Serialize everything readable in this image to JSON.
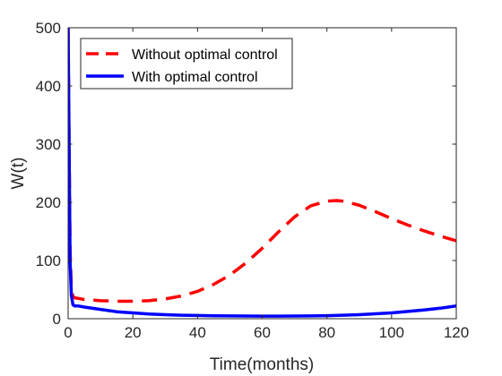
{
  "chart_data": {
    "type": "line",
    "title": "",
    "xlabel": "Time(months)",
    "ylabel": "W(t)",
    "xlim": [
      0,
      120
    ],
    "ylim": [
      0,
      500
    ],
    "xticks": [
      0,
      20,
      40,
      60,
      80,
      100,
      120
    ],
    "yticks": [
      0,
      100,
      200,
      300,
      400,
      500
    ],
    "grid": false,
    "legend_position": "top-left",
    "series": [
      {
        "name": "Without optimal control",
        "color": "#ff0000",
        "style": "dashed",
        "x": [
          0,
          0.3,
          0.6,
          1.0,
          1.5,
          2,
          5,
          10,
          15,
          20,
          25,
          30,
          35,
          40,
          45,
          50,
          55,
          60,
          65,
          70,
          75,
          80,
          83,
          85,
          90,
          95,
          100,
          105,
          110,
          115,
          120
        ],
        "y": [
          500,
          300,
          120,
          50,
          38,
          36,
          33,
          31,
          30,
          30,
          31,
          34,
          39,
          47,
          59,
          75,
          96,
          121,
          149,
          175,
          194,
          202,
          203,
          202,
          195,
          184,
          172,
          161,
          151,
          142,
          134
        ]
      },
      {
        "name": "With optimal control",
        "color": "#0000ff",
        "style": "solid",
        "x": [
          0,
          0.3,
          0.6,
          1.0,
          1.5,
          2,
          3,
          5,
          10,
          15,
          20,
          25,
          30,
          35,
          40,
          45,
          50,
          55,
          60,
          65,
          70,
          75,
          80,
          85,
          90,
          95,
          100,
          105,
          110,
          115,
          120
        ],
        "y": [
          500,
          300,
          100,
          40,
          24,
          22,
          22,
          20,
          16,
          12,
          10,
          8,
          7,
          6,
          5.5,
          5,
          4.8,
          4.6,
          4.5,
          4.5,
          4.6,
          4.8,
          5.2,
          6,
          7,
          8.5,
          10,
          12.5,
          15,
          18,
          22
        ]
      }
    ]
  }
}
